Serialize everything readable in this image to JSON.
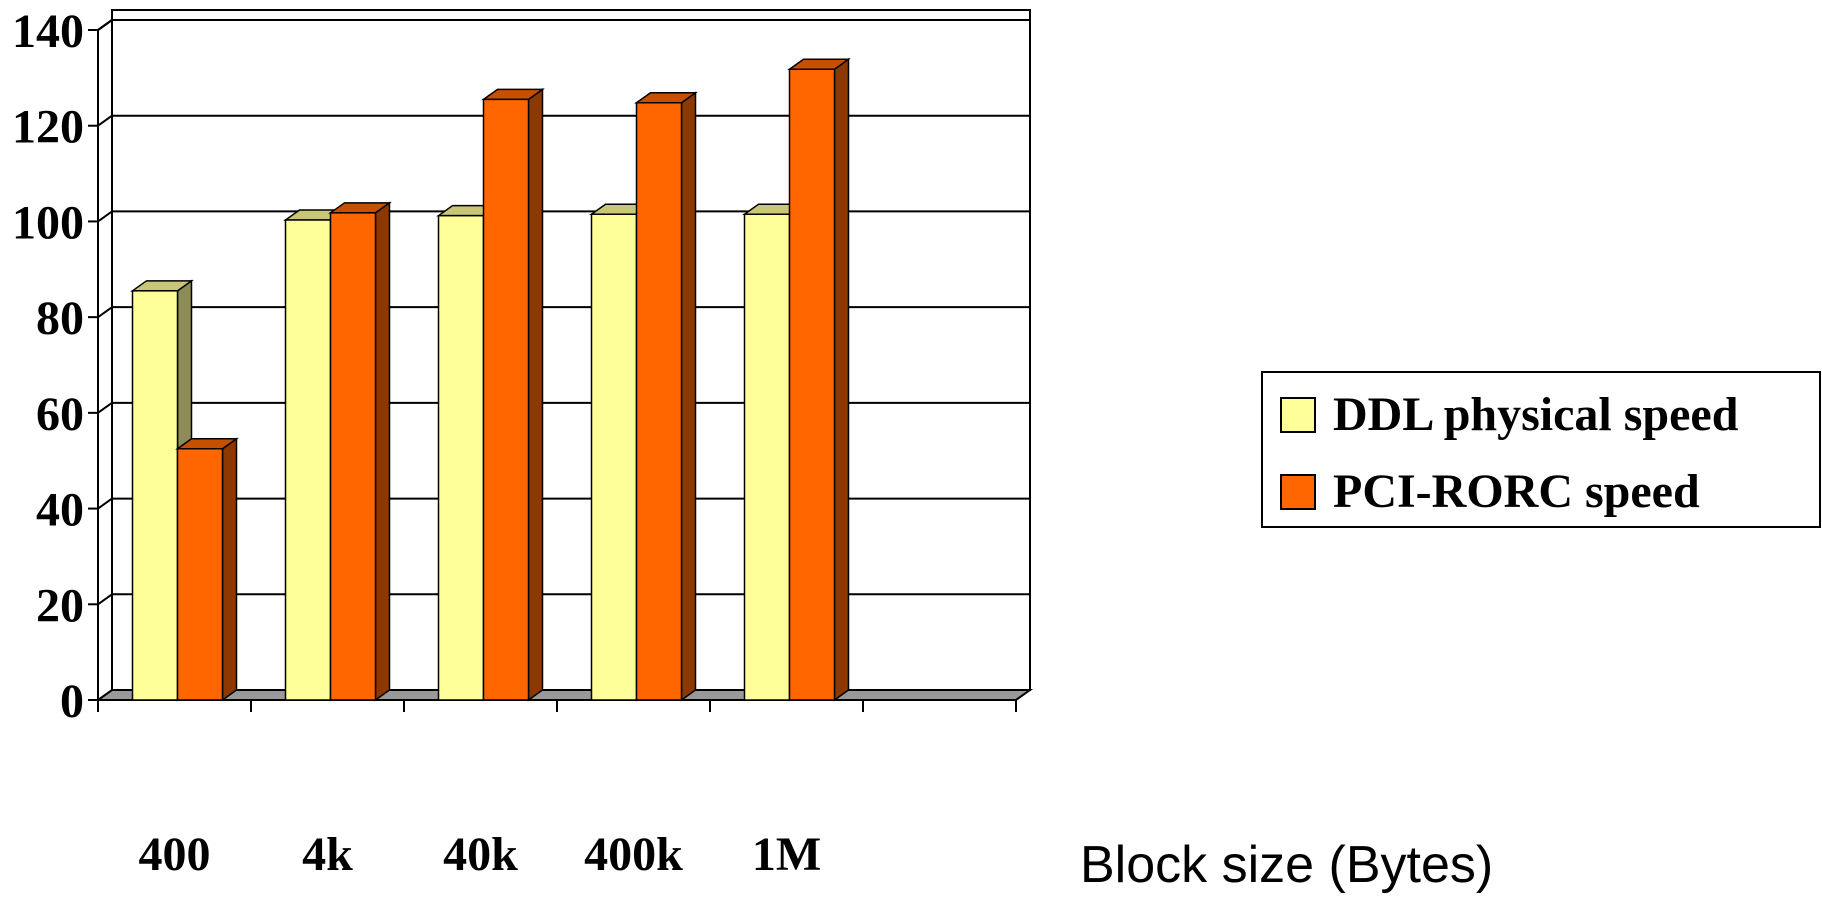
{
  "chart_data": {
    "type": "bar",
    "style": "3d-clustered",
    "categories": [
      "400",
      "4k",
      "40k",
      "400k",
      "1M",
      ""
    ],
    "series": [
      {
        "name": "DDL physical speed",
        "values": [
          85.5,
          100.3,
          101.2,
          101.5,
          101.5,
          null
        ],
        "color": "#FFFF99"
      },
      {
        "name": "PCI-RORC speed",
        "values": [
          52.5,
          101.8,
          125.5,
          124.8,
          131.8,
          null
        ],
        "color": "#FF6600"
      }
    ],
    "xlabel": "Block size (Bytes)",
    "ylabel": "",
    "ylim": [
      0,
      140
    ],
    "yticks": [
      0,
      20,
      40,
      60,
      80,
      100,
      120,
      140
    ],
    "grid": true,
    "legend_position": "right",
    "floor_color": "#999999"
  }
}
